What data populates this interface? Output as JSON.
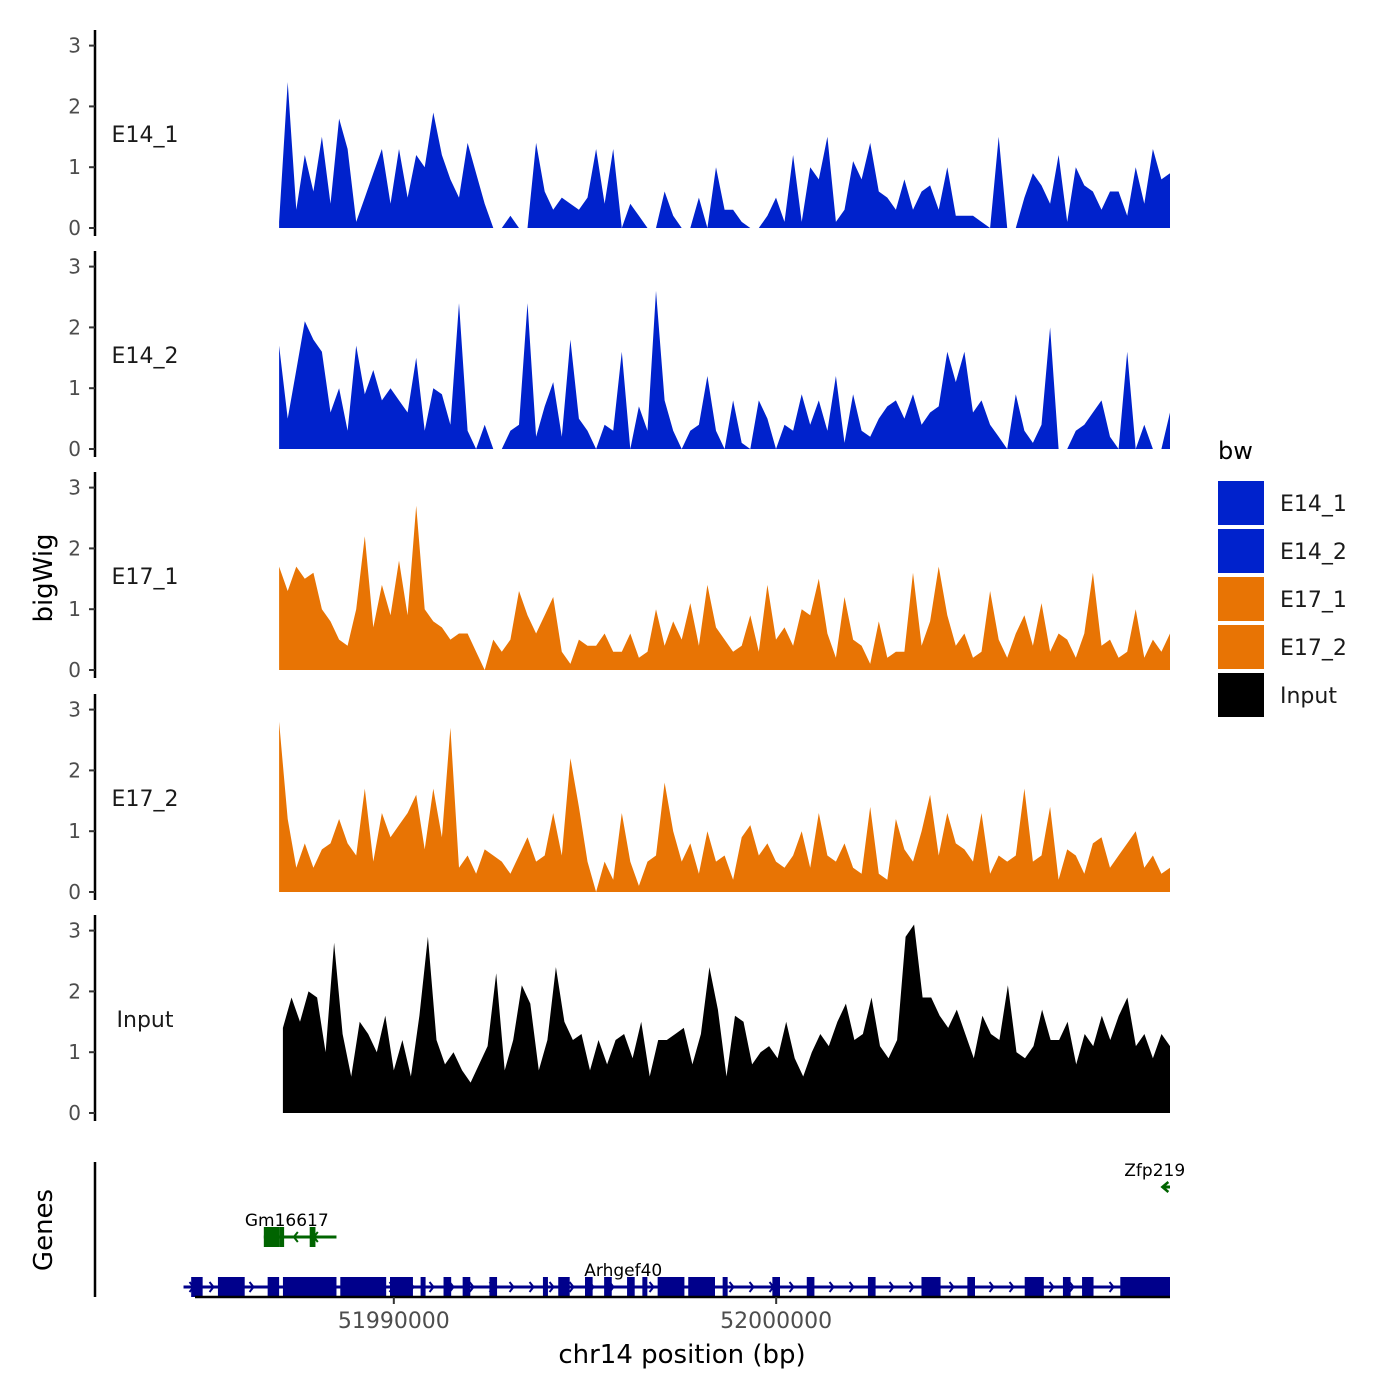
{
  "chart_data": {
    "type": "area",
    "ylabel": "bigWig",
    "xlabel": "chr14 position (bp)",
    "genes_label": "Genes",
    "xlim": [
      51984800,
      52010300
    ],
    "ylim": [
      0,
      3.2
    ],
    "yticks": [
      "0",
      "1",
      "2",
      "3"
    ],
    "xticks": [
      {
        "value": 51990000,
        "label": "51990000"
      },
      {
        "value": 52000000,
        "label": "52000000"
      }
    ],
    "legend": {
      "title": "bw",
      "items": [
        {
          "label": "E14_1",
          "color": "#0022cc"
        },
        {
          "label": "E14_2",
          "color": "#0022cc"
        },
        {
          "label": "E17_1",
          "color": "#e87404"
        },
        {
          "label": "E17_2",
          "color": "#e87404"
        },
        {
          "label": "Input",
          "color": "#000000"
        }
      ]
    },
    "series": [
      {
        "name": "E14_1",
        "color": "#0022cc",
        "x_start": 51987000,
        "x_end": 52010300,
        "values": [
          0.1,
          2.4,
          0.3,
          1.2,
          0.6,
          1.5,
          0.4,
          1.8,
          1.3,
          0.1,
          0.5,
          0.9,
          1.3,
          0.4,
          1.3,
          0.5,
          1.2,
          1.0,
          1.9,
          1.2,
          0.8,
          0.5,
          1.4,
          0.9,
          0.4,
          0.0,
          0.0,
          0.2,
          0.0,
          0.0,
          1.4,
          0.6,
          0.3,
          0.5,
          0.4,
          0.3,
          0.5,
          1.3,
          0.4,
          1.3,
          0.0,
          0.4,
          0.2,
          0.0,
          0.0,
          0.6,
          0.2,
          0.0,
          0.0,
          0.5,
          0.0,
          1.0,
          0.3,
          0.3,
          0.1,
          0.0,
          0.0,
          0.2,
          0.5,
          0.1,
          1.2,
          0.1,
          1.0,
          0.8,
          1.5,
          0.1,
          0.3,
          1.1,
          0.8,
          1.4,
          0.6,
          0.5,
          0.3,
          0.8,
          0.3,
          0.6,
          0.7,
          0.3,
          1.0,
          0.2,
          0.2,
          0.2,
          0.1,
          0.0,
          1.5,
          0.0,
          0.0,
          0.5,
          0.9,
          0.7,
          0.4,
          1.2,
          0.1,
          1.0,
          0.7,
          0.6,
          0.3,
          0.6,
          0.6,
          0.2,
          1.0,
          0.4,
          1.3,
          0.8,
          0.9
        ]
      },
      {
        "name": "E14_2",
        "color": "#0022cc",
        "x_start": 51987000,
        "x_end": 52010300,
        "values": [
          1.7,
          0.5,
          1.3,
          2.1,
          1.8,
          1.6,
          0.6,
          1.0,
          0.3,
          1.7,
          0.9,
          1.3,
          0.8,
          1.0,
          0.8,
          0.6,
          1.5,
          0.3,
          1.0,
          0.9,
          0.4,
          2.4,
          0.3,
          0.0,
          0.4,
          0.0,
          0.0,
          0.3,
          0.4,
          2.4,
          0.2,
          0.7,
          1.1,
          0.2,
          1.8,
          0.5,
          0.3,
          0.0,
          0.4,
          0.3,
          1.6,
          0.0,
          0.7,
          0.3,
          2.6,
          0.8,
          0.3,
          0.0,
          0.3,
          0.4,
          1.2,
          0.3,
          0.0,
          0.8,
          0.1,
          0.0,
          0.8,
          0.5,
          0.0,
          0.4,
          0.3,
          0.9,
          0.4,
          0.8,
          0.3,
          1.2,
          0.1,
          0.9,
          0.3,
          0.2,
          0.5,
          0.7,
          0.8,
          0.5,
          0.9,
          0.4,
          0.6,
          0.7,
          1.6,
          1.1,
          1.6,
          0.6,
          0.8,
          0.4,
          0.2,
          0.0,
          0.9,
          0.3,
          0.1,
          0.4,
          2.0,
          0.0,
          0.0,
          0.3,
          0.4,
          0.6,
          0.8,
          0.2,
          0.0,
          1.6,
          0.0,
          0.4,
          0.0,
          0.0,
          0.6
        ]
      },
      {
        "name": "E17_1",
        "color": "#e87404",
        "x_start": 51987000,
        "x_end": 52010300,
        "values": [
          1.7,
          1.3,
          1.7,
          1.5,
          1.6,
          1.0,
          0.8,
          0.5,
          0.4,
          1.0,
          2.2,
          0.7,
          1.4,
          0.9,
          1.8,
          0.9,
          2.7,
          1.0,
          0.8,
          0.7,
          0.5,
          0.6,
          0.6,
          0.3,
          0.0,
          0.5,
          0.3,
          0.5,
          1.3,
          0.9,
          0.6,
          0.9,
          1.2,
          0.3,
          0.1,
          0.5,
          0.4,
          0.4,
          0.6,
          0.3,
          0.3,
          0.6,
          0.2,
          0.3,
          1.0,
          0.4,
          0.8,
          0.5,
          1.1,
          0.4,
          1.4,
          0.7,
          0.5,
          0.3,
          0.4,
          0.9,
          0.3,
          1.4,
          0.5,
          0.7,
          0.4,
          1.0,
          0.9,
          1.5,
          0.6,
          0.2,
          1.2,
          0.5,
          0.4,
          0.1,
          0.8,
          0.2,
          0.3,
          0.3,
          1.6,
          0.4,
          0.8,
          1.7,
          0.9,
          0.4,
          0.6,
          0.2,
          0.3,
          1.3,
          0.5,
          0.2,
          0.6,
          0.9,
          0.4,
          1.1,
          0.3,
          0.6,
          0.5,
          0.2,
          0.6,
          1.6,
          0.4,
          0.5,
          0.2,
          0.3,
          1.0,
          0.2,
          0.5,
          0.3,
          0.6
        ]
      },
      {
        "name": "E17_2",
        "color": "#e87404",
        "x_start": 51987000,
        "x_end": 52010300,
        "values": [
          2.8,
          1.2,
          0.4,
          0.8,
          0.4,
          0.7,
          0.8,
          1.2,
          0.8,
          0.6,
          1.7,
          0.5,
          1.3,
          0.9,
          1.1,
          1.3,
          1.6,
          0.7,
          1.7,
          0.9,
          2.7,
          0.4,
          0.6,
          0.3,
          0.7,
          0.6,
          0.5,
          0.3,
          0.6,
          0.9,
          0.5,
          0.6,
          1.3,
          0.6,
          2.2,
          1.4,
          0.5,
          0.0,
          0.5,
          0.2,
          1.3,
          0.5,
          0.1,
          0.5,
          0.6,
          1.8,
          1.0,
          0.5,
          0.8,
          0.3,
          1.0,
          0.5,
          0.6,
          0.2,
          0.9,
          1.1,
          0.6,
          0.8,
          0.5,
          0.4,
          0.6,
          1.0,
          0.4,
          1.3,
          0.6,
          0.5,
          0.8,
          0.4,
          0.3,
          1.4,
          0.3,
          0.2,
          1.2,
          0.7,
          0.5,
          1.0,
          1.6,
          0.6,
          1.3,
          0.8,
          0.7,
          0.5,
          1.3,
          0.3,
          0.6,
          0.5,
          0.6,
          1.7,
          0.5,
          0.6,
          1.4,
          0.2,
          0.7,
          0.6,
          0.3,
          0.8,
          0.9,
          0.4,
          0.6,
          0.8,
          1.0,
          0.4,
          0.6,
          0.3,
          0.4
        ]
      },
      {
        "name": "Input",
        "color": "#000000",
        "x_start": 51987100,
        "x_end": 52010300,
        "values": [
          1.4,
          1.9,
          1.5,
          2.0,
          1.9,
          1.0,
          2.8,
          1.3,
          0.6,
          1.5,
          1.3,
          1.0,
          1.6,
          0.7,
          1.2,
          0.6,
          1.6,
          2.9,
          1.2,
          0.8,
          1.0,
          0.7,
          0.5,
          0.8,
          1.1,
          2.3,
          0.7,
          1.2,
          2.1,
          1.8,
          0.7,
          1.2,
          2.4,
          1.5,
          1.2,
          1.3,
          0.7,
          1.2,
          0.8,
          1.2,
          1.3,
          0.9,
          1.5,
          0.6,
          1.2,
          1.2,
          1.3,
          1.4,
          0.8,
          1.3,
          2.4,
          1.7,
          0.6,
          1.6,
          1.5,
          0.8,
          1.0,
          1.1,
          0.9,
          1.5,
          0.9,
          0.6,
          1.0,
          1.3,
          1.1,
          1.5,
          1.8,
          1.2,
          1.3,
          1.9,
          1.1,
          0.9,
          1.2,
          2.9,
          3.1,
          1.9,
          1.9,
          1.6,
          1.4,
          1.7,
          1.3,
          0.9,
          1.6,
          1.3,
          1.2,
          2.1,
          1.0,
          0.9,
          1.1,
          1.7,
          1.2,
          1.2,
          1.5,
          0.8,
          1.3,
          1.1,
          1.6,
          1.2,
          1.6,
          1.9,
          1.1,
          1.3,
          0.9,
          1.3,
          1.1
        ]
      }
    ],
    "genes": [
      {
        "name": "Zfp219",
        "strand": "-",
        "color": "#006400",
        "start": 52010100,
        "end": 52010300,
        "exons": [],
        "label_position": 52009900,
        "row": 3
      },
      {
        "name": "Gm16617",
        "strand": "-",
        "color": "#006400",
        "start": 51986600,
        "end": 51988500,
        "exons": [
          [
            51986600,
            51987000
          ],
          [
            51987000,
            51987100
          ],
          [
            51987800,
            51987950
          ]
        ],
        "label_position": 51987200,
        "row": 2
      },
      {
        "name": "Arhgef40",
        "strand": "+",
        "color": "#00008b",
        "start": 51984500,
        "end": 52010300,
        "exons": [
          [
            51984700,
            51985000
          ],
          [
            51985400,
            51986100
          ],
          [
            51986700,
            51987000
          ],
          [
            51987100,
            51988500
          ],
          [
            51988600,
            51989800
          ],
          [
            51989900,
            51990500
          ],
          [
            51990700,
            51990800
          ],
          [
            51991300,
            51991500
          ],
          [
            51991800,
            51992000
          ],
          [
            51992500,
            51992700
          ],
          [
            51993900,
            51994000
          ],
          [
            51994300,
            51994600
          ],
          [
            51995000,
            51995200
          ],
          [
            51995500,
            51995700
          ],
          [
            51996100,
            51996300
          ],
          [
            51996500,
            51996600
          ],
          [
            51996900,
            51997600
          ],
          [
            51997700,
            51998400
          ],
          [
            51998600,
            51998700
          ],
          [
            51999900,
            52000100
          ],
          [
            52000800,
            52001000
          ],
          [
            52002400,
            52002600
          ],
          [
            52003800,
            52004300
          ],
          [
            52005000,
            52005200
          ],
          [
            52006500,
            52007000
          ],
          [
            52007500,
            52007700
          ],
          [
            52008000,
            52008300
          ],
          [
            52009000,
            52010300
          ]
        ],
        "label_position": 51996000,
        "row": 1
      }
    ]
  }
}
